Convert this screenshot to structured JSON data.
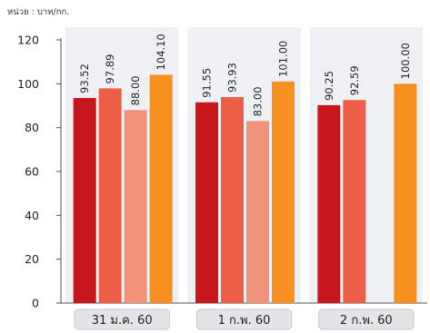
{
  "chart_data": {
    "type": "bar",
    "unit_label": "หน่วย : บาท/กก.",
    "categories": [
      "31 ม.ค. 60",
      "1 ก.พ. 60",
      "2 ก.พ. 60"
    ],
    "series": [
      {
        "color": "#c8161d",
        "values": [
          93.52,
          91.55,
          90.25
        ],
        "labels": [
          "93.52",
          "91.55",
          "90.25"
        ]
      },
      {
        "color": "#ee5d45",
        "values": [
          97.89,
          93.93,
          92.59
        ],
        "labels": [
          "97.89",
          "93.93",
          "92.59"
        ]
      },
      {
        "color": "#f3927a",
        "values": [
          88.0,
          83.0,
          null
        ],
        "labels": [
          "88.00",
          "83.00",
          ""
        ]
      },
      {
        "color": "#f7901e",
        "values": [
          104.1,
          101.0,
          100.0
        ],
        "labels": [
          "104.10",
          "101.00",
          "100.00"
        ]
      }
    ],
    "ylim": [
      0,
      120
    ],
    "yticks": [
      0,
      20,
      40,
      60,
      80,
      100,
      120
    ],
    "grid": false,
    "group_background": "#eef0f3",
    "category_label_box": "#e3e4e7"
  }
}
